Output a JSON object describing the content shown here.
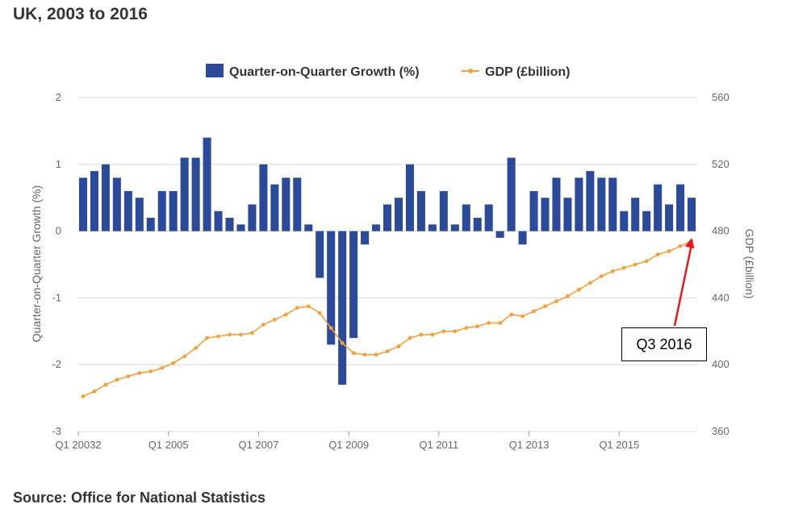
{
  "title": "UK, 2003 to 2016",
  "source": "Source: Office for National Statistics",
  "annotation": {
    "label": "Q3 2016",
    "arrow_color": "#e8171d"
  },
  "colors": {
    "bar": "#2b4a9a",
    "line": "#f4a03c",
    "grid": "#d8d8d8",
    "tick_text": "#666666"
  },
  "chart_data": {
    "type": "bar+line",
    "left_axis": {
      "label": "Quarter-on-Quarter Growth (%)",
      "ylim": [
        -3,
        2
      ],
      "ticks": [
        2,
        1,
        0,
        -1,
        -2,
        -3
      ]
    },
    "right_axis": {
      "label": "GDP (£billion)",
      "ylim": [
        360,
        560
      ],
      "ticks": [
        560,
        520,
        480,
        440,
        400,
        360
      ]
    },
    "x_tick_labels": [
      "Q1 20032",
      "Q1 2005",
      "Q1 2007",
      "Q1 2009",
      "Q1 2011",
      "Q1 2013",
      "Q1 2015"
    ],
    "legend": {
      "position": "top",
      "items": [
        "Quarter-on-Quarter Growth (%)",
        "GDP (£billion)"
      ]
    },
    "grid": true,
    "series": [
      {
        "name": "Quarter-on-Quarter Growth (%)",
        "type": "bar",
        "axis": "left",
        "values": [
          0.8,
          0.9,
          1.0,
          0.8,
          0.6,
          0.5,
          0.2,
          0.6,
          0.6,
          1.1,
          1.1,
          1.4,
          0.3,
          0.2,
          0.1,
          0.4,
          1.0,
          0.7,
          0.8,
          0.8,
          0.1,
          -0.7,
          -1.7,
          -2.3,
          -1.6,
          -0.2,
          0.1,
          0.4,
          0.5,
          1.0,
          0.6,
          0.1,
          0.6,
          0.1,
          0.4,
          0.2,
          0.4,
          -0.1,
          1.1,
          -0.2,
          0.6,
          0.5,
          0.8,
          0.5,
          0.8,
          0.9,
          0.8,
          0.8,
          0.3,
          0.5,
          0.3,
          0.7,
          0.4,
          0.7,
          0.5
        ]
      },
      {
        "name": "GDP (£billion)",
        "type": "line",
        "axis": "right",
        "values": [
          381,
          384,
          388,
          391,
          393,
          395,
          396,
          398,
          401,
          405,
          410,
          416,
          417,
          418,
          418,
          419,
          424,
          427,
          430,
          434,
          435,
          431,
          422,
          413,
          407,
          406,
          406,
          408,
          411,
          416,
          418,
          418,
          420,
          420,
          422,
          423,
          425,
          425,
          430,
          429,
          432,
          435,
          438,
          441,
          445,
          449,
          453,
          456,
          458,
          460,
          462,
          466,
          468,
          471,
          474
        ]
      }
    ]
  }
}
